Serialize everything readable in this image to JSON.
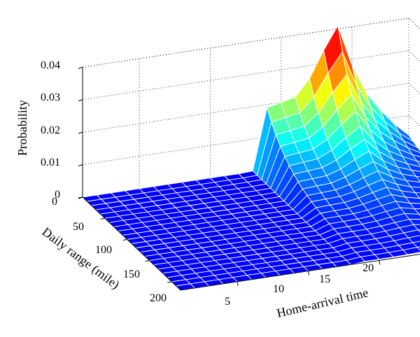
{
  "chart_data": {
    "type": "surface",
    "title": "",
    "xlabel": "Home-arrival time",
    "ylabel": "Daily range (mile)",
    "zlabel": "Probability",
    "x_ticks": [
      5,
      10,
      15,
      20
    ],
    "y_ticks": [
      0,
      50,
      100,
      150,
      200
    ],
    "z_ticks": [
      0,
      0.01,
      0.02,
      0.03,
      0.04
    ],
    "x_tick_labels": [
      "5",
      "10",
      "15",
      "20"
    ],
    "y_tick_labels": [
      "0",
      "50",
      "100",
      "150",
      "200"
    ],
    "z_tick_labels": [
      "0",
      "0.01",
      "0.02",
      "0.03",
      "0.04"
    ],
    "xlim": [
      1,
      24
    ],
    "ylim": [
      0,
      220
    ],
    "zlim": [
      0,
      0.04
    ],
    "grid": true,
    "colormap": "jet",
    "peak": {
      "x": 19,
      "y": 0,
      "z": 0.041
    },
    "profile_hours": [
      {
        "x": 1,
        "z0": 0.0
      },
      {
        "x": 2,
        "z0": 0.0
      },
      {
        "x": 3,
        "z0": 0.0
      },
      {
        "x": 4,
        "z0": 0.0
      },
      {
        "x": 5,
        "z0": 0.0
      },
      {
        "x": 6,
        "z0": 0.0
      },
      {
        "x": 7,
        "z0": 0.0
      },
      {
        "x": 8,
        "z0": 0.0
      },
      {
        "x": 9,
        "z0": 0.0
      },
      {
        "x": 10,
        "z0": 0.0
      },
      {
        "x": 11,
        "z0": 0.0
      },
      {
        "x": 12,
        "z0": 0.0
      },
      {
        "x": 13,
        "z0": 0.0002
      },
      {
        "x": 14,
        "z0": 0.019
      },
      {
        "x": 15,
        "z0": 0.02
      },
      {
        "x": 16,
        "z0": 0.021
      },
      {
        "x": 17,
        "z0": 0.026
      },
      {
        "x": 18,
        "z0": 0.034
      },
      {
        "x": 19,
        "z0": 0.041
      },
      {
        "x": 20,
        "z0": 0.028
      },
      {
        "x": 21,
        "z0": 0.019
      },
      {
        "x": 22,
        "z0": 0.013
      },
      {
        "x": 23,
        "z0": 0.008
      },
      {
        "x": 24,
        "z0": 0.004
      }
    ],
    "range_decay_miles": 55
  }
}
